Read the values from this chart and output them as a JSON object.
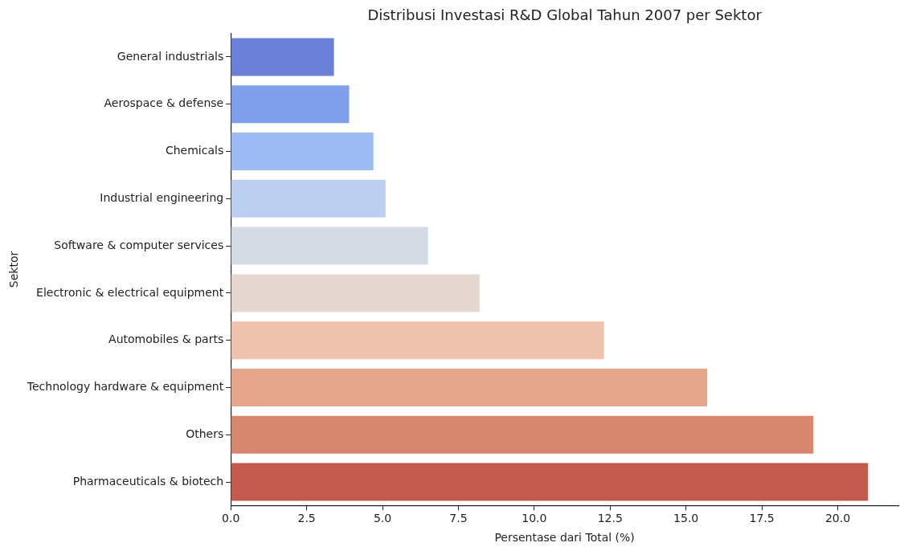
{
  "chart_data": {
    "type": "bar",
    "orientation": "horizontal",
    "title": "Distribusi Investasi R&D Global Tahun 2007 per Sektor",
    "xlabel": "Persentase dari Total (%)",
    "ylabel": "Sektor",
    "categories": [
      "General industrials",
      "Aerospace & defense",
      "Chemicals",
      "Industrial engineering",
      "Software & computer services",
      "Electronic & electrical equipment",
      "Automobiles & parts",
      "Technology hardware & equipment",
      "Others",
      "Pharmaceuticals & biotech"
    ],
    "values": [
      3.4,
      3.9,
      4.7,
      5.1,
      6.5,
      8.2,
      12.3,
      15.7,
      19.2,
      21.0
    ],
    "colors": [
      "#6a7fd6",
      "#819eea",
      "#9dbaf2",
      "#bccff0",
      "#d5dbe5",
      "#e4d7cf",
      "#eec2ac",
      "#e5a78c",
      "#d7866f",
      "#c25a50"
    ],
    "xlim": [
      0,
      22.0
    ],
    "xticks": [
      {
        "value": 0,
        "label": "0.0"
      },
      {
        "value": 2.5,
        "label": "2.5"
      },
      {
        "value": 5,
        "label": "5.0"
      },
      {
        "value": 7.5,
        "label": "7.5"
      },
      {
        "value": 10,
        "label": "10.0"
      },
      {
        "value": 12.5,
        "label": "12.5"
      },
      {
        "value": 15,
        "label": "15.0"
      },
      {
        "value": 17.5,
        "label": "17.5"
      },
      {
        "value": 20,
        "label": "20.0"
      }
    ],
    "grid": false,
    "legend": false
  }
}
